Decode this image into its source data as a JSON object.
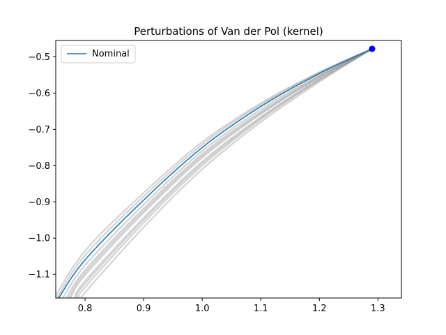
{
  "chart_data": {
    "type": "line",
    "title": "Perturbations of Van der Pol (kernel)",
    "xlabel": "",
    "ylabel": "",
    "xlim": [
      0.75,
      1.34
    ],
    "ylim": [
      -1.165,
      -0.455
    ],
    "xticks": [
      0.8,
      0.9,
      1.0,
      1.1,
      1.2,
      1.3
    ],
    "xtick_labels": [
      "0.8",
      "0.9",
      "1.0",
      "1.1",
      "1.2",
      "1.3"
    ],
    "yticks": [
      -0.5,
      -0.6,
      -0.7,
      -0.8,
      -0.9,
      -1.0,
      -1.1
    ],
    "ytick_labels": [
      "−0.5",
      "−0.6",
      "−0.7",
      "−0.8",
      "−0.9",
      "−1.0",
      "−1.1"
    ],
    "grid": false,
    "legend": {
      "placement": "top-left",
      "entries": [
        "Nominal"
      ]
    },
    "colors": {
      "nominal": "#1f77b4",
      "perturbation": "#808080",
      "start_point": "#0000ff"
    },
    "start_point": {
      "x": 1.29,
      "y": -0.478
    },
    "series": [
      {
        "name": "Nominal",
        "role": "nominal",
        "x": [
          1.29,
          1.2,
          1.1,
          1.0,
          0.9,
          0.8,
          0.755
        ],
        "y": [
          -0.478,
          -0.546,
          -0.637,
          -0.75,
          -0.895,
          -1.06,
          -1.165
        ]
      },
      {
        "role": "perturbation",
        "x": [
          1.29,
          1.2,
          1.1,
          1.0,
          0.9,
          0.8,
          0.748
        ],
        "y": [
          -0.478,
          -0.542,
          -0.628,
          -0.735,
          -0.875,
          -1.035,
          -1.165
        ]
      },
      {
        "role": "perturbation",
        "x": [
          1.29,
          1.2,
          1.1,
          1.0,
          0.9,
          0.8,
          0.752
        ],
        "y": [
          -0.478,
          -0.544,
          -0.632,
          -0.742,
          -0.885,
          -1.047,
          -1.165
        ]
      },
      {
        "role": "perturbation",
        "x": [
          1.29,
          1.2,
          1.1,
          1.0,
          0.9,
          0.8,
          0.762
        ],
        "y": [
          -0.478,
          -0.55,
          -0.645,
          -0.76,
          -0.908,
          -1.075,
          -1.165
        ]
      },
      {
        "role": "perturbation",
        "x": [
          1.29,
          1.2,
          1.1,
          1.0,
          0.9,
          0.8,
          0.768
        ],
        "y": [
          -0.478,
          -0.553,
          -0.651,
          -0.768,
          -0.918,
          -1.088,
          -1.165
        ]
      },
      {
        "role": "perturbation",
        "x": [
          1.29,
          1.2,
          1.1,
          1.0,
          0.9,
          0.8,
          0.775
        ],
        "y": [
          -0.478,
          -0.557,
          -0.658,
          -0.778,
          -0.93,
          -1.102,
          -1.165
        ]
      },
      {
        "role": "perturbation",
        "x": [
          1.29,
          1.2,
          1.1,
          1.0,
          0.9,
          0.8,
          0.782
        ],
        "y": [
          -0.478,
          -0.561,
          -0.666,
          -0.789,
          -0.944,
          -1.118,
          -1.165
        ]
      },
      {
        "role": "perturbation",
        "x": [
          1.29,
          1.2,
          1.1,
          1.0,
          0.9,
          0.8,
          0.79
        ],
        "y": [
          -0.478,
          -0.565,
          -0.673,
          -0.8,
          -0.958,
          -1.135,
          -1.165
        ]
      },
      {
        "role": "perturbation",
        "x": [
          1.29,
          1.2,
          1.1,
          1.0,
          0.9,
          0.8,
          0.797
        ],
        "y": [
          -0.478,
          -0.569,
          -0.68,
          -0.81,
          -0.97,
          -1.15,
          -1.165
        ]
      },
      {
        "role": "perturbation",
        "x": [
          1.29,
          1.2,
          1.1,
          1.0,
          0.9,
          0.8,
          0.772
        ],
        "y": [
          -0.478,
          -0.555,
          -0.655,
          -0.773,
          -0.924,
          -1.095,
          -1.165
        ]
      },
      {
        "role": "perturbation",
        "x": [
          1.29,
          1.2,
          1.1,
          1.0,
          0.9,
          0.8,
          0.785
        ],
        "y": [
          -0.478,
          -0.563,
          -0.669,
          -0.794,
          -0.95,
          -1.125,
          -1.165
        ]
      }
    ]
  }
}
